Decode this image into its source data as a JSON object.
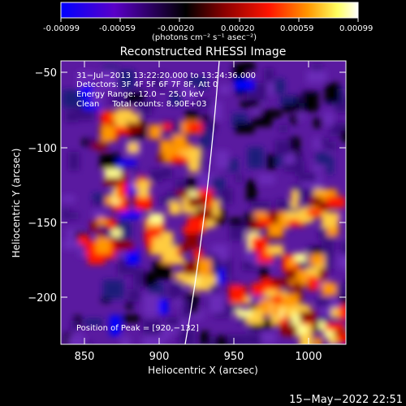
{
  "colorbar": {
    "tick_labels": [
      "-0.00099",
      "-0.00059",
      "-0.00020",
      "0.00020",
      "0.00059",
      "0.00099"
    ],
    "units": "(photons cm⁻² s⁻¹ asec⁻²)",
    "colors": [
      "#0000ff",
      "#5a00c8",
      "#000000",
      "#8a0000",
      "#ff1400",
      "#ff9600",
      "#ffff60",
      "#ffffff"
    ]
  },
  "plot": {
    "title": "Reconstructed RHESSI Image",
    "xlabel": "Heliocentric X (arcsec)",
    "ylabel": "Heliocentric Y (arcsec)",
    "x_ticks": [
      "850",
      "900",
      "950",
      "1000"
    ],
    "y_ticks": [
      "−50",
      "−100",
      "−150",
      "−200"
    ],
    "x_range": [
      833,
      1025
    ],
    "y_range": [
      -233,
      -43
    ]
  },
  "annotations": {
    "line1": "31−Jul−2013 13:22:20.000 to 13:24:36.000",
    "line2": "Detectors: 3F 4F 5F 6F 7F 8F, Att 0",
    "line3": "Energy Range: 12.0 − 25.0 keV",
    "line4": "Clean     Total counts: 8.90E+03",
    "peak": "Position of Peak = [920,−132]"
  },
  "footer": {
    "timestamp": "15−May−2022 22:51"
  }
}
